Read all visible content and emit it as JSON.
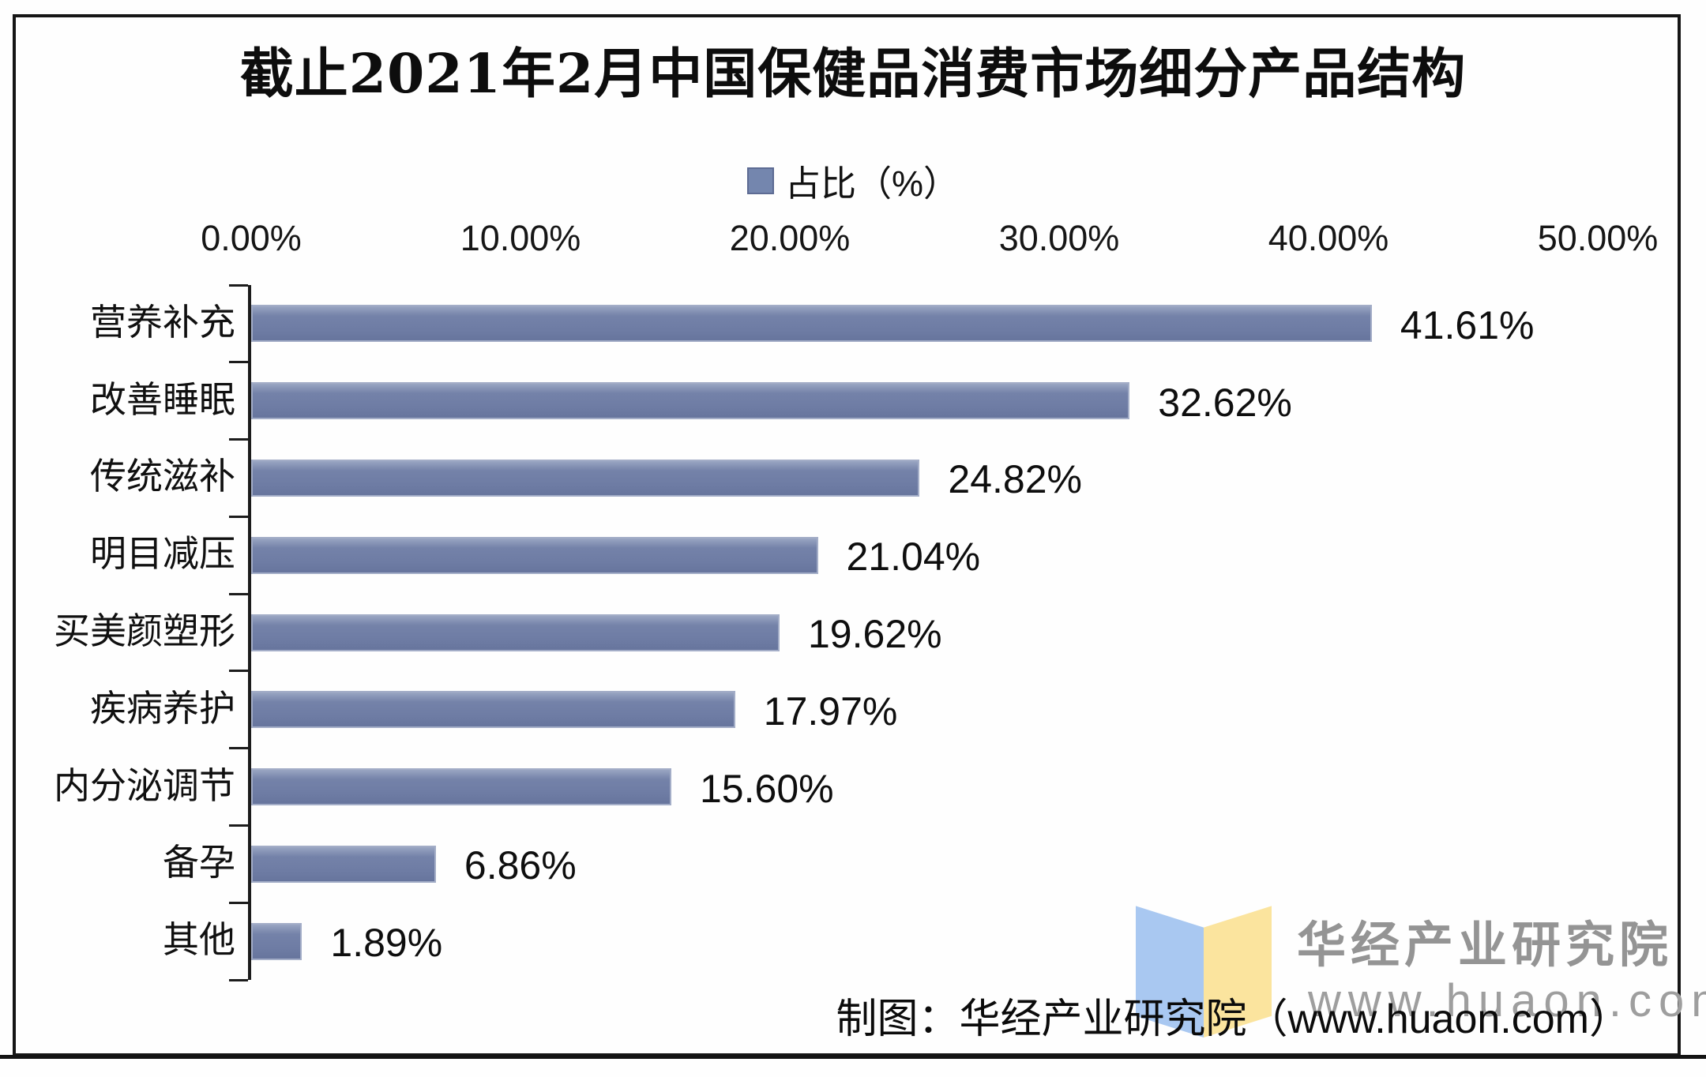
{
  "title": "截止2021年2月中国保健品消费市场细分产品结构",
  "legend": {
    "label": "占比（%）"
  },
  "chart_data": {
    "type": "bar",
    "orientation": "horizontal",
    "title": "截止2021年2月中国保健品消费市场细分产品结构",
    "legend": [
      "占比（%）"
    ],
    "legend_position": "top",
    "categories": [
      "营养补充",
      "改善睡眠",
      "传统滋补",
      "明目减压",
      "买美颜塑形",
      "疾病养护",
      "内分泌调节",
      "备孕",
      "其他"
    ],
    "values": [
      41.61,
      32.62,
      24.82,
      21.04,
      19.62,
      17.97,
      15.6,
      6.86,
      1.89
    ],
    "value_labels": [
      "41.61%",
      "32.62%",
      "24.82%",
      "21.04%",
      "19.62%",
      "17.97%",
      "15.60%",
      "6.86%",
      "1.89%"
    ],
    "x_ticks": [
      "0.00%",
      "10.00%",
      "20.00%",
      "30.00%",
      "40.00%",
      "50.00%"
    ],
    "xlim": [
      0,
      50
    ],
    "xlabel": "",
    "ylabel": "",
    "grid": false,
    "bar_color": "#7080A6"
  },
  "footer": {
    "credit": "制图：华经产业研究院（www.huaon.com）"
  },
  "watermark": {
    "name": "华经产业研究院",
    "url": "www.huaon.com",
    "logo": "open-book-icon",
    "logo_colors": {
      "left": "#A9C8F1",
      "right": "#FBE49E"
    }
  },
  "colors": {
    "bar": "#7080A6",
    "bar_border": "#A3ADC7",
    "axis": "#1C1C1C",
    "watermark_text": "#949494"
  }
}
